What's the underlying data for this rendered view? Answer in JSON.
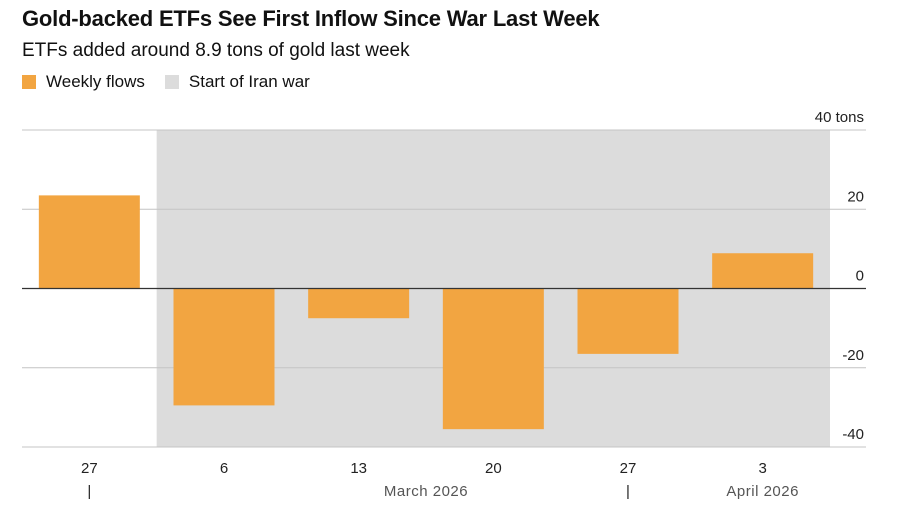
{
  "title": "Gold-backed ETFs See First Inflow Since War Last Week",
  "subtitle": "ETFs added around 8.9 tons of gold last week",
  "legend": [
    {
      "label": "Weekly flows",
      "color": "#f2a541"
    },
    {
      "label": "Start of Iran war",
      "color": "#dcdcdc"
    }
  ],
  "chart_data": {
    "type": "bar",
    "categories": [
      "27",
      "6",
      "13",
      "20",
      "27",
      "3"
    ],
    "values": [
      23.5,
      -29.5,
      -7.5,
      -35.5,
      -16.5,
      8.9
    ],
    "shaded_from_index": 1,
    "ylim": [
      -40,
      40
    ],
    "yticks": [
      40,
      20,
      0,
      -20,
      -40
    ],
    "ytick_labels": [
      "40 tons",
      "20",
      "0",
      "-20",
      "-40"
    ],
    "month_labels": [
      {
        "label": "March 2026",
        "at_index": 2.5
      },
      {
        "label": "April 2026",
        "at_index": 5
      }
    ],
    "month_separators": [
      0,
      4
    ],
    "separator_glyph": "|",
    "bar_color": "#f2a541",
    "shade_color": "#dcdcdc"
  }
}
